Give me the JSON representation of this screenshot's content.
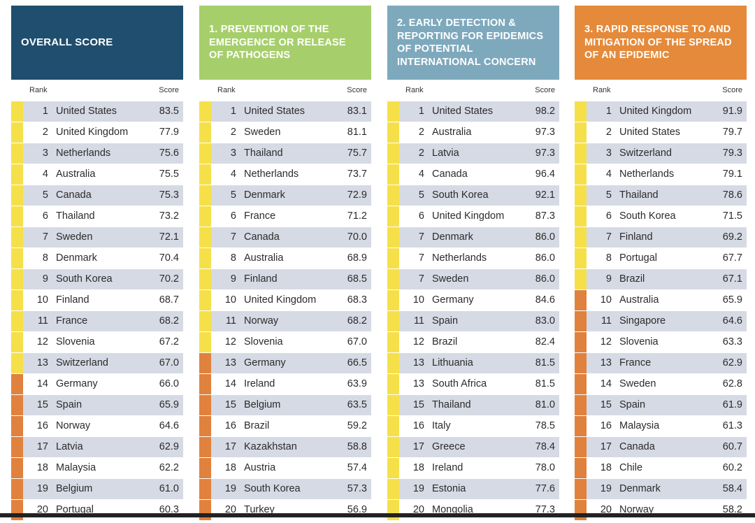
{
  "colors": {
    "overall_header": "#1f4e6e",
    "prevention_header": "#a6cf6b",
    "detection_header": "#7ea9bd",
    "response_header": "#e58a3a",
    "yellow_marker": "#f5e04a",
    "orange_marker": "#e0813d"
  },
  "columns": {
    "rank_label": "Rank",
    "score_label": "Score"
  },
  "panels": [
    {
      "title": "OVERALL SCORE",
      "rows": [
        {
          "rank": "1",
          "country": "United States",
          "score": "83.5",
          "tier": "yellow"
        },
        {
          "rank": "2",
          "country": "United Kingdom",
          "score": "77.9",
          "tier": "yellow"
        },
        {
          "rank": "3",
          "country": "Netherlands",
          "score": "75.6",
          "tier": "yellow"
        },
        {
          "rank": "4",
          "country": "Australia",
          "score": "75.5",
          "tier": "yellow"
        },
        {
          "rank": "5",
          "country": "Canada",
          "score": "75.3",
          "tier": "yellow"
        },
        {
          "rank": "6",
          "country": "Thailand",
          "score": "73.2",
          "tier": "yellow"
        },
        {
          "rank": "7",
          "country": "Sweden",
          "score": "72.1",
          "tier": "yellow"
        },
        {
          "rank": "8",
          "country": "Denmark",
          "score": "70.4",
          "tier": "yellow"
        },
        {
          "rank": "9",
          "country": "South Korea",
          "score": "70.2",
          "tier": "yellow"
        },
        {
          "rank": "10",
          "country": "Finland",
          "score": "68.7",
          "tier": "yellow"
        },
        {
          "rank": "11",
          "country": "France",
          "score": "68.2",
          "tier": "yellow"
        },
        {
          "rank": "12",
          "country": "Slovenia",
          "score": "67.2",
          "tier": "yellow"
        },
        {
          "rank": "13",
          "country": "Switzerland",
          "score": "67.0",
          "tier": "yellow"
        },
        {
          "rank": "14",
          "country": "Germany",
          "score": "66.0",
          "tier": "orange"
        },
        {
          "rank": "15",
          "country": "Spain",
          "score": "65.9",
          "tier": "orange"
        },
        {
          "rank": "16",
          "country": "Norway",
          "score": "64.6",
          "tier": "orange"
        },
        {
          "rank": "17",
          "country": "Latvia",
          "score": "62.9",
          "tier": "orange"
        },
        {
          "rank": "18",
          "country": "Malaysia",
          "score": "62.2",
          "tier": "orange"
        },
        {
          "rank": "19",
          "country": "Belgium",
          "score": "61.0",
          "tier": "orange"
        },
        {
          "rank": "20",
          "country": "Portugal",
          "score": "60.3",
          "tier": "orange"
        }
      ]
    },
    {
      "title": "1. PREVENTION OF THE EMERGENCE OR RELEASE OF PATHOGENS",
      "rows": [
        {
          "rank": "1",
          "country": "United States",
          "score": "83.1",
          "tier": "yellow"
        },
        {
          "rank": "2",
          "country": "Sweden",
          "score": "81.1",
          "tier": "yellow"
        },
        {
          "rank": "3",
          "country": "Thailand",
          "score": "75.7",
          "tier": "yellow"
        },
        {
          "rank": "4",
          "country": "Netherlands",
          "score": "73.7",
          "tier": "yellow"
        },
        {
          "rank": "5",
          "country": "Denmark",
          "score": "72.9",
          "tier": "yellow"
        },
        {
          "rank": "6",
          "country": "France",
          "score": "71.2",
          "tier": "yellow"
        },
        {
          "rank": "7",
          "country": "Canada",
          "score": "70.0",
          "tier": "yellow"
        },
        {
          "rank": "8",
          "country": "Australia",
          "score": "68.9",
          "tier": "yellow"
        },
        {
          "rank": "9",
          "country": "Finland",
          "score": "68.5",
          "tier": "yellow"
        },
        {
          "rank": "10",
          "country": "United Kingdom",
          "score": "68.3",
          "tier": "yellow"
        },
        {
          "rank": "11",
          "country": "Norway",
          "score": "68.2",
          "tier": "yellow"
        },
        {
          "rank": "12",
          "country": "Slovenia",
          "score": "67.0",
          "tier": "yellow"
        },
        {
          "rank": "13",
          "country": "Germany",
          "score": "66.5",
          "tier": "orange"
        },
        {
          "rank": "14",
          "country": "Ireland",
          "score": "63.9",
          "tier": "orange"
        },
        {
          "rank": "15",
          "country": "Belgium",
          "score": "63.5",
          "tier": "orange"
        },
        {
          "rank": "16",
          "country": "Brazil",
          "score": "59.2",
          "tier": "orange"
        },
        {
          "rank": "17",
          "country": "Kazakhstan",
          "score": "58.8",
          "tier": "orange"
        },
        {
          "rank": "18",
          "country": "Austria",
          "score": "57.4",
          "tier": "orange"
        },
        {
          "rank": "19",
          "country": "South Korea",
          "score": "57.3",
          "tier": "orange"
        },
        {
          "rank": "20",
          "country": "Turkey",
          "score": "56.9",
          "tier": "orange"
        }
      ]
    },
    {
      "title": "2. EARLY DETECTION & REPORTING FOR EPIDEMICS OF POTENTIAL INTERNATIONAL CONCERN",
      "rows": [
        {
          "rank": "1",
          "country": "United States",
          "score": "98.2",
          "tier": "yellow"
        },
        {
          "rank": "2",
          "country": "Australia",
          "score": "97.3",
          "tier": "yellow"
        },
        {
          "rank": "2",
          "country": "Latvia",
          "score": "97.3",
          "tier": "yellow"
        },
        {
          "rank": "4",
          "country": "Canada",
          "score": "96.4",
          "tier": "yellow"
        },
        {
          "rank": "5",
          "country": "South Korea",
          "score": "92.1",
          "tier": "yellow"
        },
        {
          "rank": "6",
          "country": "United Kingdom",
          "score": "87.3",
          "tier": "yellow"
        },
        {
          "rank": "7",
          "country": "Denmark",
          "score": "86.0",
          "tier": "yellow"
        },
        {
          "rank": "7",
          "country": "Netherlands",
          "score": "86.0",
          "tier": "yellow"
        },
        {
          "rank": "7",
          "country": "Sweden",
          "score": "86.0",
          "tier": "yellow"
        },
        {
          "rank": "10",
          "country": "Germany",
          "score": "84.6",
          "tier": "yellow"
        },
        {
          "rank": "11",
          "country": "Spain",
          "score": "83.0",
          "tier": "yellow"
        },
        {
          "rank": "12",
          "country": "Brazil",
          "score": "82.4",
          "tier": "yellow"
        },
        {
          "rank": "13",
          "country": "Lithuania",
          "score": "81.5",
          "tier": "yellow"
        },
        {
          "rank": "13",
          "country": "South Africa",
          "score": "81.5",
          "tier": "yellow"
        },
        {
          "rank": "15",
          "country": "Thailand",
          "score": "81.0",
          "tier": "yellow"
        },
        {
          "rank": "16",
          "country": "Italy",
          "score": "78.5",
          "tier": "yellow"
        },
        {
          "rank": "17",
          "country": "Greece",
          "score": "78.4",
          "tier": "yellow"
        },
        {
          "rank": "18",
          "country": "Ireland",
          "score": "78.0",
          "tier": "yellow"
        },
        {
          "rank": "19",
          "country": "Estonia",
          "score": "77.6",
          "tier": "yellow"
        },
        {
          "rank": "20",
          "country": "Mongolia",
          "score": "77.3",
          "tier": "yellow"
        }
      ]
    },
    {
      "title": "3. RAPID RESPONSE TO AND MITIGATION OF THE SPREAD OF AN EPIDEMIC",
      "rows": [
        {
          "rank": "1",
          "country": "United Kingdom",
          "score": "91.9",
          "tier": "yellow"
        },
        {
          "rank": "2",
          "country": "United States",
          "score": "79.7",
          "tier": "yellow"
        },
        {
          "rank": "3",
          "country": "Switzerland",
          "score": "79.3",
          "tier": "yellow"
        },
        {
          "rank": "4",
          "country": "Netherlands",
          "score": "79.1",
          "tier": "yellow"
        },
        {
          "rank": "5",
          "country": "Thailand",
          "score": "78.6",
          "tier": "yellow"
        },
        {
          "rank": "6",
          "country": "South Korea",
          "score": "71.5",
          "tier": "yellow"
        },
        {
          "rank": "7",
          "country": "Finland",
          "score": "69.2",
          "tier": "yellow"
        },
        {
          "rank": "8",
          "country": "Portugal",
          "score": "67.7",
          "tier": "yellow"
        },
        {
          "rank": "9",
          "country": "Brazil",
          "score": "67.1",
          "tier": "yellow"
        },
        {
          "rank": "10",
          "country": "Australia",
          "score": "65.9",
          "tier": "orange"
        },
        {
          "rank": "11",
          "country": "Singapore",
          "score": "64.6",
          "tier": "orange"
        },
        {
          "rank": "12",
          "country": "Slovenia",
          "score": "63.3",
          "tier": "orange"
        },
        {
          "rank": "13",
          "country": "France",
          "score": "62.9",
          "tier": "orange"
        },
        {
          "rank": "14",
          "country": "Sweden",
          "score": "62.8",
          "tier": "orange"
        },
        {
          "rank": "15",
          "country": "Spain",
          "score": "61.9",
          "tier": "orange"
        },
        {
          "rank": "16",
          "country": "Malaysia",
          "score": "61.3",
          "tier": "orange"
        },
        {
          "rank": "17",
          "country": "Canada",
          "score": "60.7",
          "tier": "orange"
        },
        {
          "rank": "18",
          "country": "Chile",
          "score": "60.2",
          "tier": "orange"
        },
        {
          "rank": "19",
          "country": "Denmark",
          "score": "58.4",
          "tier": "orange"
        },
        {
          "rank": "20",
          "country": "Norway",
          "score": "58.2",
          "tier": "orange"
        }
      ]
    }
  ]
}
